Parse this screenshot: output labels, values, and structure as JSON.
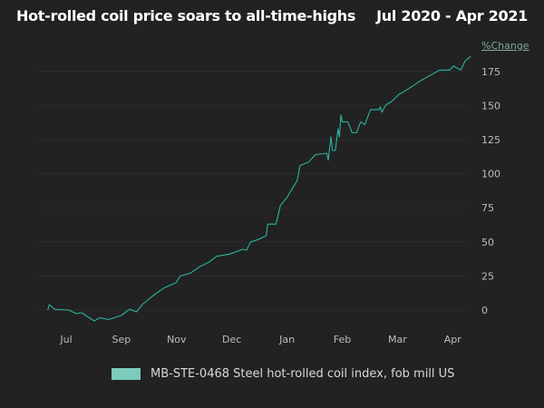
{
  "chart_data": {
    "type": "line",
    "title": "Hot-rolled coil price soars to all-time-highs",
    "subtitle": "Jul 2020 - Apr 2021",
    "ylabel": "%Change",
    "xlabel": "",
    "ylim": [
      -12,
      190
    ],
    "yticks": [
      0,
      25,
      50,
      75,
      100,
      125,
      150,
      175
    ],
    "xlim": [
      "2020-07-01",
      "2021-04-27"
    ],
    "xtick_labels": [
      "Jul",
      "Sep",
      "Nov",
      "Dec",
      "Jan",
      "Feb",
      "Mar",
      "Apr"
    ],
    "grid": true,
    "legend_position": "bottom",
    "series": [
      {
        "name": "MB-STE-0468 Steel hot-rolled coil index, fob mill US",
        "color": "#2bb39f",
        "legend_color": "#7ccbbb",
        "points": [
          [
            "2020-07-01",
            0
          ],
          [
            "2020-07-02",
            4
          ],
          [
            "2020-07-06",
            0.5
          ],
          [
            "2020-07-16",
            0
          ],
          [
            "2020-07-21",
            -2.5
          ],
          [
            "2020-07-25",
            -2
          ],
          [
            "2020-08-03",
            -8
          ],
          [
            "2020-08-07",
            -5.5
          ],
          [
            "2020-08-13",
            -7
          ],
          [
            "2020-08-22",
            -4
          ],
          [
            "2020-08-28",
            0.5
          ],
          [
            "2020-09-02",
            -1.3
          ],
          [
            "2020-09-06",
            4
          ],
          [
            "2020-09-13",
            10
          ],
          [
            "2020-09-21",
            16
          ],
          [
            "2020-09-30",
            20
          ],
          [
            "2020-10-03",
            25
          ],
          [
            "2020-10-10",
            27
          ],
          [
            "2020-10-17",
            32
          ],
          [
            "2020-10-23",
            35
          ],
          [
            "2020-10-29",
            39.5
          ],
          [
            "2020-11-07",
            41
          ],
          [
            "2020-11-16",
            44.5
          ],
          [
            "2020-11-19",
            44
          ],
          [
            "2020-11-22",
            50
          ],
          [
            "2020-11-28",
            52
          ],
          [
            "2020-12-03",
            54.5
          ],
          [
            "2020-12-04",
            63
          ],
          [
            "2020-12-10",
            63
          ],
          [
            "2020-12-13",
            76.5
          ],
          [
            "2020-12-18",
            83
          ],
          [
            "2020-12-22",
            90
          ],
          [
            "2020-12-25",
            95
          ],
          [
            "2020-12-27",
            106
          ],
          [
            "2021-01-02",
            108.5
          ],
          [
            "2021-01-07",
            114
          ],
          [
            "2021-01-15",
            115
          ],
          [
            "2021-01-16",
            110
          ],
          [
            "2021-01-18",
            127
          ],
          [
            "2021-01-19",
            117
          ],
          [
            "2021-01-21",
            117
          ],
          [
            "2021-01-23",
            133
          ],
          [
            "2021-01-24",
            127
          ],
          [
            "2021-01-25",
            143
          ],
          [
            "2021-01-26",
            138
          ],
          [
            "2021-01-30",
            138
          ],
          [
            "2021-02-02",
            130
          ],
          [
            "2021-02-05",
            130
          ],
          [
            "2021-02-08",
            138
          ],
          [
            "2021-02-11",
            136
          ],
          [
            "2021-02-15",
            147
          ],
          [
            "2021-02-21",
            147
          ],
          [
            "2021-02-22",
            149
          ],
          [
            "2021-02-23",
            145
          ],
          [
            "2021-02-26",
            150.5
          ],
          [
            "2021-03-02",
            153
          ],
          [
            "2021-03-07",
            158
          ],
          [
            "2021-03-13",
            161.7
          ],
          [
            "2021-03-23",
            168.5
          ],
          [
            "2021-04-05",
            176
          ],
          [
            "2021-04-12",
            176
          ],
          [
            "2021-04-15",
            179
          ],
          [
            "2021-04-20",
            176
          ],
          [
            "2021-04-23",
            182.5
          ],
          [
            "2021-04-27",
            186
          ]
        ]
      }
    ]
  }
}
